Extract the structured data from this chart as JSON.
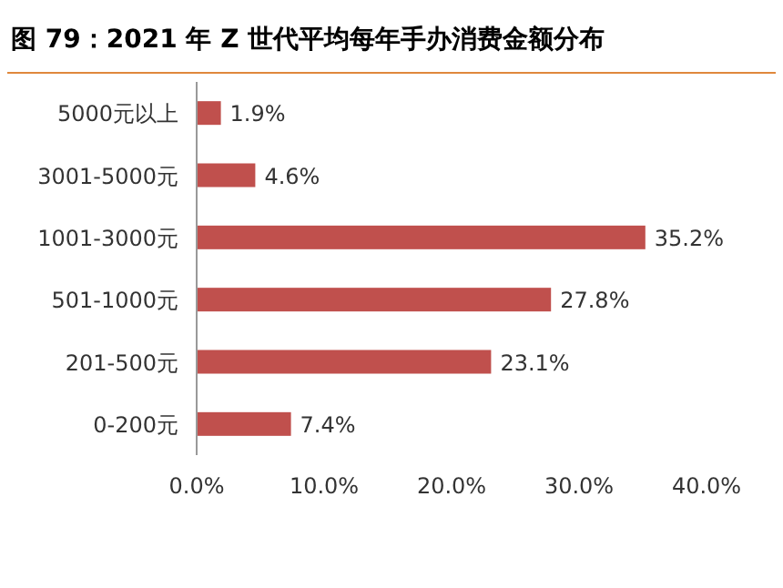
{
  "chart_data": {
    "type": "bar",
    "orientation": "horizontal",
    "title": "图 79：2021 年 Z 世代平均每年手办消费金额分布",
    "categories": [
      "5000元以上",
      "3001-5000元",
      "1001-3000元",
      "501-1000元",
      "201-500元",
      "0-200元"
    ],
    "values": [
      1.9,
      4.6,
      35.2,
      27.8,
      23.1,
      7.4
    ],
    "value_labels": [
      "1.9%",
      "4.6%",
      "35.2%",
      "27.8%",
      "23.1%",
      "7.4%"
    ],
    "color": "#c0504d",
    "xlim": [
      0,
      40
    ],
    "xticks": [
      {
        "value": 0,
        "label": "0.0%"
      },
      {
        "value": 10,
        "label": "10.0%"
      },
      {
        "value": 20,
        "label": "20.0%"
      },
      {
        "value": 30,
        "label": "30.0%"
      },
      {
        "value": 40,
        "label": "40.0%"
      }
    ],
    "grid": false
  }
}
